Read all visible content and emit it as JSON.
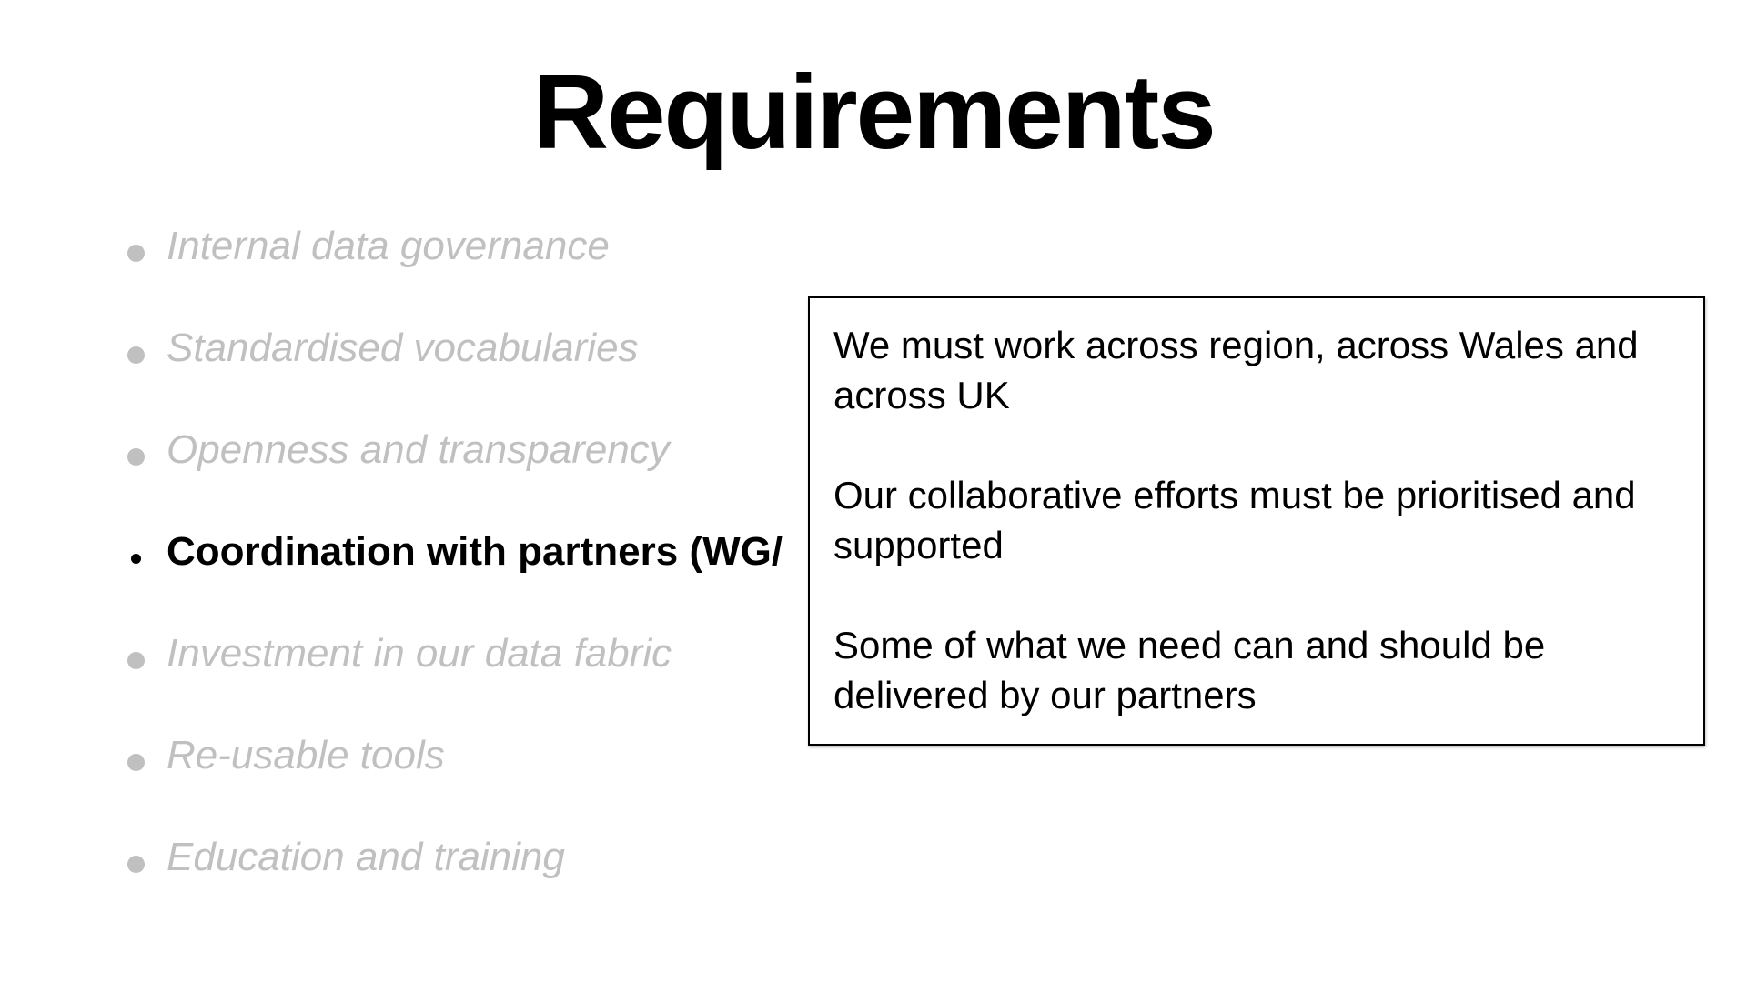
{
  "slide": {
    "title": "Requirements",
    "bullets": [
      {
        "label": "Internal data governance",
        "active": false
      },
      {
        "label": "Standardised vocabularies",
        "active": false
      },
      {
        "label": "Openness and transparency",
        "active": false
      },
      {
        "label": "Coordination with partners (WG/",
        "active": true
      },
      {
        "label": "Investment in our data fabric",
        "active": false
      },
      {
        "label": "Re-usable tools",
        "active": false
      },
      {
        "label": "Education and training",
        "active": false
      }
    ],
    "callout": {
      "paragraphs": [
        "We must work across region, across Wales and across UK",
        "Our collaborative efforts must be prioritised and supported",
        "Some of what we need can and should be delivered by our partners"
      ]
    }
  },
  "colors": {
    "background": "#ffffff",
    "text": "#000000",
    "dimmed_text": "#c0c0c0"
  }
}
